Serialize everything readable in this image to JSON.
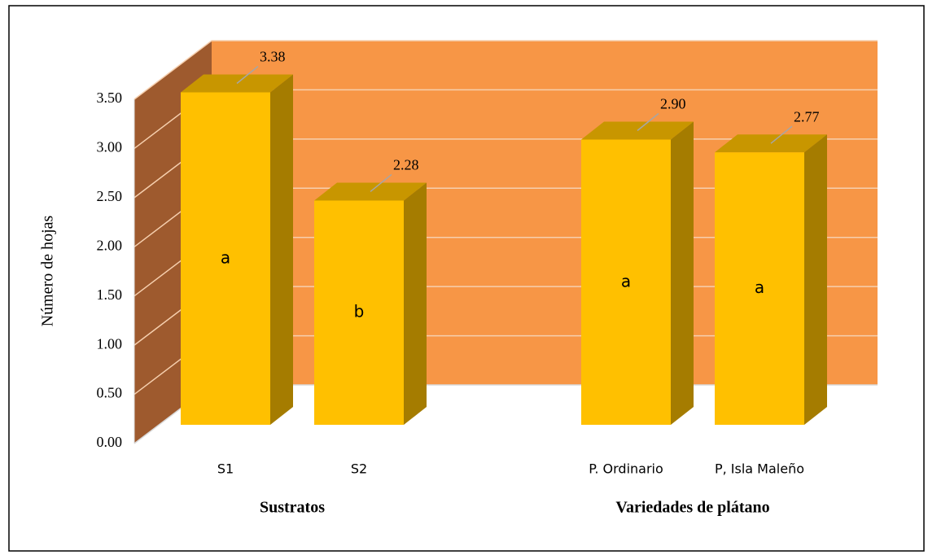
{
  "chart_data": {
    "type": "bar3d",
    "ylabel": "Número de hojas",
    "categories": [
      "S1",
      "S2",
      null,
      "P. Ordinario",
      "P, Isla Maleño"
    ],
    "values": [
      3.38,
      2.28,
      null,
      2.9,
      2.77
    ],
    "value_labels": [
      "3.38",
      "2.28",
      null,
      "2.90",
      "2.77"
    ],
    "letters": [
      "a",
      "b",
      null,
      "a",
      "a"
    ],
    "group_labels": [
      "Sustratos",
      "Variedades de plátano"
    ],
    "color": "#ffc000",
    "ylim": [
      0,
      3.5
    ],
    "yticks": [
      {
        "value": 0,
        "label": "0.00"
      },
      {
        "value": 0.5,
        "label": "0.50"
      },
      {
        "value": 1,
        "label": "1.00"
      },
      {
        "value": 1.5,
        "label": "1.50"
      },
      {
        "value": 2,
        "label": "2.00"
      },
      {
        "value": 2.5,
        "label": "2.50"
      },
      {
        "value": 3,
        "label": "3.00"
      },
      {
        "value": 3.5,
        "label": "3.50"
      }
    ],
    "grid": true
  }
}
